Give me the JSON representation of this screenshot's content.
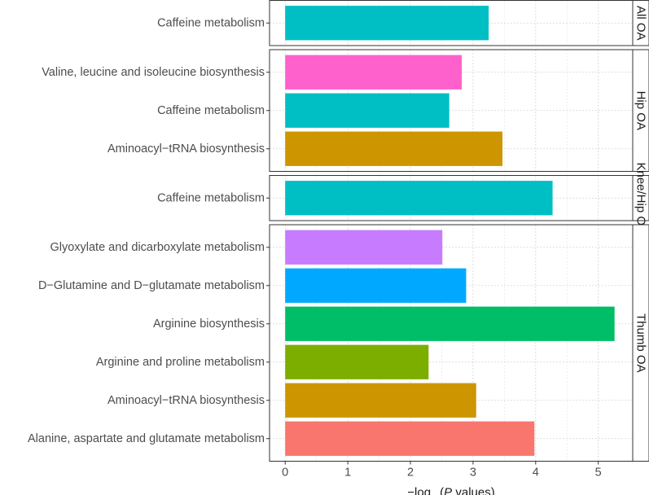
{
  "chart_data": {
    "type": "bar",
    "orientation": "horizontal",
    "xlabel_parts": [
      "−log",
      "10",
      "(",
      "P",
      " values)"
    ],
    "xlim": [
      -0.25,
      5.55
    ],
    "xticks": [
      0,
      1,
      2,
      3,
      4,
      5
    ],
    "grid": true,
    "panels": [
      {
        "facet": "All OA",
        "bars": [
          {
            "category": "Caffeine metabolism",
            "value": 3.25,
            "color": "#00BFC4"
          }
        ]
      },
      {
        "facet": "Hip OA",
        "bars": [
          {
            "category": "Valine, leucine and isoleucine biosynthesis",
            "value": 2.82,
            "color": "#FF61CC"
          },
          {
            "category": "Caffeine metabolism",
            "value": 2.62,
            "color": "#00BFC4"
          },
          {
            "category": "Aminoacyl−tRNA biosynthesis",
            "value": 3.47,
            "color": "#CD9600"
          }
        ]
      },
      {
        "facet": "Knee/Hip OA",
        "bars": [
          {
            "category": "Caffeine metabolism",
            "value": 4.27,
            "color": "#00BFC4"
          }
        ]
      },
      {
        "facet": "Thumb OA",
        "bars": [
          {
            "category": "Glyoxylate and dicarboxylate metabolism",
            "value": 2.51,
            "color": "#C77CFF"
          },
          {
            "category": "D−Glutamine and D−glutamate metabolism",
            "value": 2.89,
            "color": "#00A9FF"
          },
          {
            "category": "Arginine biosynthesis",
            "value": 5.26,
            "color": "#00BE67"
          },
          {
            "category": "Arginine and proline metabolism",
            "value": 2.29,
            "color": "#7CAE00"
          },
          {
            "category": "Aminoacyl−tRNA biosynthesis",
            "value": 3.05,
            "color": "#CD9600"
          },
          {
            "category": "Alanine, aspartate and glutamate metabolism",
            "value": 3.98,
            "color": "#F8766D"
          }
        ]
      }
    ]
  }
}
